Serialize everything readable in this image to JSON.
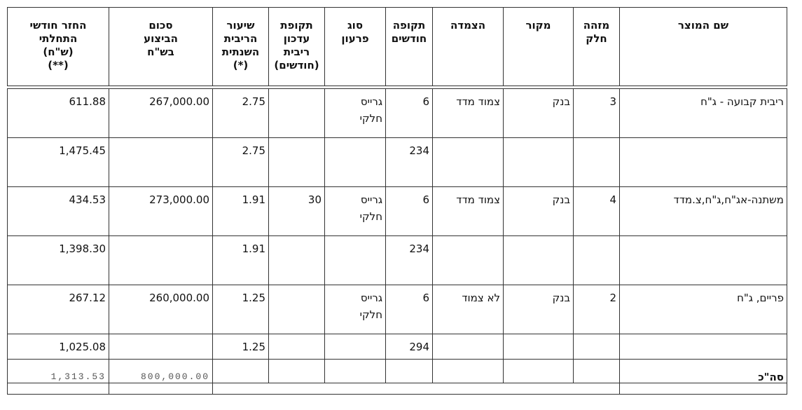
{
  "table": {
    "headers": [
      [
        "שם המוצר"
      ],
      [
        "מזהה",
        "חלק"
      ],
      [
        "מקור"
      ],
      [
        "הצמדה"
      ],
      [
        "תקופה",
        "חודשים"
      ],
      [
        "סוג",
        "פרעון"
      ],
      [
        "תקופת",
        "עדכון",
        "ריבית",
        "(חודשים)"
      ],
      [
        "שיעור",
        "הריבית",
        "השנתית",
        "(*)"
      ],
      [
        "סכום",
        "הביצוע",
        "בש\"ח"
      ],
      [
        "החזר חודשי",
        "התחלתי",
        "(ש\"ח)",
        "(**)"
      ]
    ],
    "rows": [
      [
        "ריבית קבועה - ג\"ח",
        "3",
        "בנק",
        "צמוד מדד",
        "6",
        "גרייס חלקי",
        null,
        "2.75",
        "267,000.00",
        "611.88"
      ],
      [
        null,
        null,
        null,
        null,
        "234",
        null,
        null,
        "2.75",
        null,
        "1,475.45"
      ],
      [
        "משתנה-אג\"ח,ג\"ח,צ.מדד",
        "4",
        "בנק",
        "צמוד מדד",
        "6",
        "גרייס חלקי",
        "30",
        "1.91",
        "273,000.00",
        "434.53"
      ],
      [
        null,
        null,
        null,
        null,
        "234",
        null,
        null,
        "1.91",
        null,
        "1,398.30"
      ],
      [
        "פריים, ג\"ח",
        "2",
        "בנק",
        "לא צמוד",
        "6",
        "גרייס חלקי",
        null,
        "1.25",
        "260,000.00",
        "267.12"
      ],
      [
        null,
        null,
        null,
        null,
        "294",
        null,
        null,
        "1.25",
        null,
        "1,025.08"
      ]
    ],
    "total": {
      "label": "סה\"כ",
      "amount": "800,000.00",
      "monthly": "1,313.53"
    }
  }
}
